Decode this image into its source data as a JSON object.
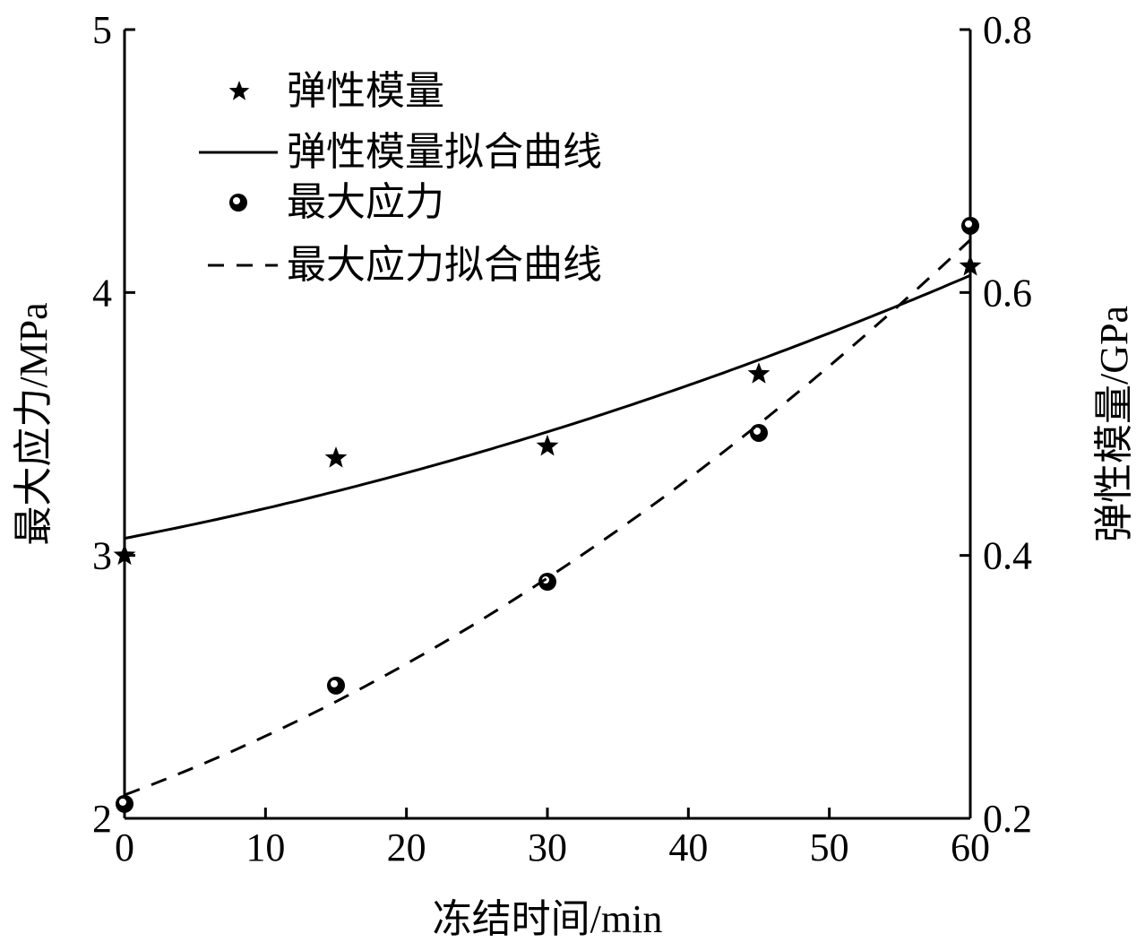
{
  "chart_data": {
    "type": "scatter",
    "title": "",
    "xlabel": "冻结时间/min",
    "ylabel_left": "最大应力/MPa",
    "ylabel_right": "弹性模量/GPa",
    "xlim": [
      0,
      60
    ],
    "ylim_left": [
      2,
      5
    ],
    "ylim_right": [
      0.2,
      0.8
    ],
    "x_ticks": [
      "0",
      "10",
      "20",
      "30",
      "40",
      "50",
      "60"
    ],
    "y_left_ticks": [
      "2",
      "3",
      "4",
      "5"
    ],
    "y_right_ticks": [
      "0.2",
      "0.4",
      "0.6",
      "0.8"
    ],
    "grid": false,
    "legend_position": "top-left",
    "legend": [
      "弹性模量",
      "弹性模量拟合曲线",
      "最大应力",
      "最大应力拟合曲线"
    ],
    "series": [
      {
        "name": "弹性模量",
        "axis": "right",
        "marker": "star",
        "x": [
          0,
          15,
          30,
          45,
          60
        ],
        "y": [
          0.4,
          0.474,
          0.483,
          0.538,
          0.62
        ]
      },
      {
        "name": "弹性模量拟合曲线",
        "axis": "right",
        "style": "solid",
        "fit": "quadratic",
        "coef": [
          0.413,
          0.002067,
          2.11e-05
        ]
      },
      {
        "name": "最大应力",
        "axis": "left",
        "marker": "circle",
        "x": [
          0,
          15,
          30,
          45,
          60
        ],
        "y": [
          2.055,
          2.505,
          2.9,
          3.466,
          4.254
        ]
      },
      {
        "name": "最大应力拟合曲线",
        "axis": "left",
        "style": "dashed",
        "fit": "quadratic",
        "coef": [
          2.089,
          0.01982,
          0.0002561
        ]
      }
    ]
  }
}
